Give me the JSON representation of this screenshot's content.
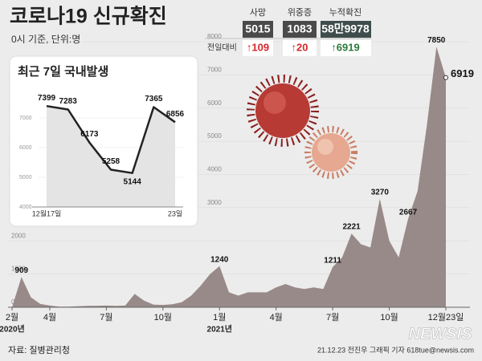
{
  "header": {
    "title": "코로나19 신규확진",
    "subtitle": "0시 기준, 단위:명"
  },
  "stats_change_label": "전일대비",
  "stats": [
    {
      "label": "사망",
      "value": "5015",
      "change": "↑109"
    },
    {
      "label": "위중증",
      "value": "1083",
      "change": "↑20"
    },
    {
      "label": "누적확진",
      "value": "58만9978",
      "change": "↑6919"
    }
  ],
  "chart_data": [
    {
      "type": "area",
      "color": "#8f807d",
      "categories": [
        "2월",
        null,
        null,
        null,
        "4월",
        null,
        null,
        null,
        null,
        null,
        "7월",
        null,
        null,
        null,
        null,
        null,
        "10월",
        null,
        null,
        null,
        null,
        null,
        "1월",
        null,
        null,
        null,
        null,
        null,
        "4월",
        null,
        null,
        null,
        null,
        null,
        "7월",
        null,
        null,
        null,
        null,
        null,
        "10월",
        null,
        null,
        null,
        null,
        null,
        "12월23일"
      ],
      "years": [
        "2020년",
        "2021년"
      ],
      "values": [
        0,
        909,
        300,
        100,
        50,
        20,
        20,
        30,
        40,
        45,
        50,
        40,
        50,
        400,
        200,
        80,
        70,
        90,
        150,
        350,
        650,
        1000,
        1240,
        450,
        350,
        450,
        450,
        450,
        600,
        700,
        600,
        550,
        600,
        550,
        1211,
        1500,
        2221,
        1900,
        1800,
        3270,
        2000,
        1500,
        2667,
        3500,
        5500,
        7850,
        6919
      ],
      "value_labels": [
        null,
        "909",
        null,
        null,
        null,
        null,
        null,
        null,
        null,
        null,
        null,
        null,
        null,
        null,
        null,
        null,
        null,
        null,
        null,
        null,
        null,
        null,
        "1240",
        null,
        null,
        null,
        null,
        null,
        null,
        null,
        null,
        null,
        null,
        null,
        "1211",
        null,
        "2221",
        null,
        null,
        "3270",
        null,
        null,
        "2667",
        null,
        null,
        "7850",
        "6919"
      ],
      "ylim": [
        0,
        8000
      ],
      "yticks": [
        0,
        1000,
        2000,
        3000,
        4000,
        5000,
        6000,
        7000,
        8000
      ],
      "grid": true
    },
    {
      "type": "line",
      "title": "최근 7일 국내발생",
      "color": "#222222",
      "categories": [
        "12월17일",
        null,
        null,
        null,
        null,
        null,
        "23일"
      ],
      "values": [
        7399,
        7283,
        6173,
        5258,
        5144,
        7365,
        6856
      ],
      "ylim": [
        4000,
        8000
      ],
      "yticks": [
        4000,
        5000,
        6000,
        7000
      ],
      "grid": true
    }
  ],
  "footer": {
    "source": "자료: 질병관리청",
    "credit": "21.12.23 전진우 그래픽 기자 618tue@newsis.com",
    "logo": "NEWSIS"
  }
}
